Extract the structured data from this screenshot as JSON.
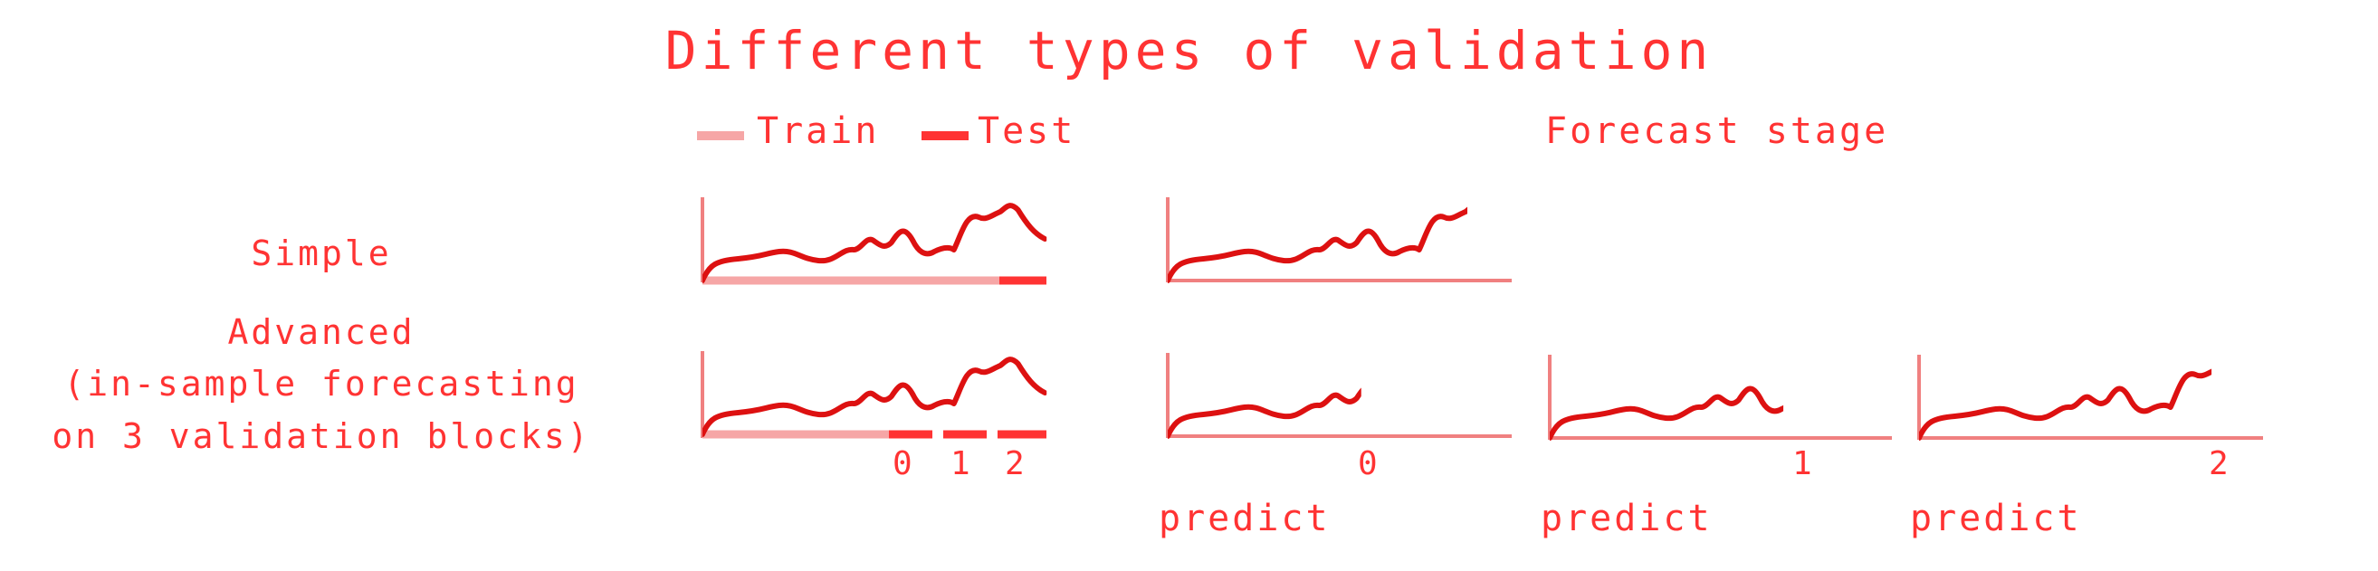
{
  "title": "Different types of validation",
  "legend": {
    "train_label": "Train",
    "test_label": "Test"
  },
  "forecast_stage_label": "Forecast stage",
  "rows": {
    "simple_label": "Simple",
    "advanced_label_lines": [
      "Advanced",
      "(in-sample forecasting",
      "on 3 validation blocks)"
    ]
  },
  "block_labels": [
    "0",
    "1",
    "2"
  ],
  "predict_label": "predict",
  "forecast_numbers": [
    "0",
    "1",
    "2"
  ],
  "colors": {
    "text": "#ff3333",
    "series": "#dd1111",
    "axis": "#f08080",
    "train": "#f6a6a6",
    "test": "#ff3333"
  }
}
